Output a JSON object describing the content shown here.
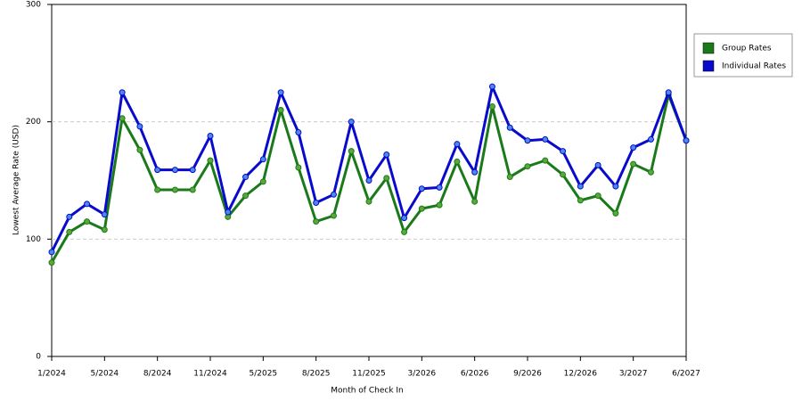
{
  "chart_data": {
    "type": "line",
    "x_label": "Month of Check In",
    "y_label": "Lowest Average Rate (USD)",
    "categories": [
      "1/2024",
      null,
      null,
      "5/2024",
      null,
      null,
      "8/2024",
      null,
      null,
      "11/2024",
      null,
      null,
      "5/2025",
      null,
      null,
      "8/2025",
      null,
      null,
      "11/2025",
      null,
      null,
      "3/2026",
      null,
      null,
      "6/2026",
      null,
      null,
      "9/2026",
      null,
      null,
      "12/2026",
      null,
      null,
      "3/2027",
      null,
      null,
      "6/2027"
    ],
    "series": [
      {
        "name": "Group Rates",
        "color": "#1a7a1a",
        "marker": "#5aa83a",
        "values": [
          80,
          106,
          115,
          108,
          203,
          176,
          142,
          142,
          142,
          167,
          119,
          137,
          149,
          210,
          161,
          115,
          120,
          175,
          132,
          152,
          106,
          126,
          129,
          166,
          132,
          213,
          153,
          162,
          167,
          155,
          133,
          137,
          122,
          164,
          157,
          223,
          184
        ]
      },
      {
        "name": "Individual Rates",
        "color": "#0a0acc",
        "marker": "#4a8ae8",
        "values": [
          89,
          119,
          130,
          121,
          225,
          196,
          159,
          159,
          159,
          188,
          123,
          153,
          168,
          225,
          191,
          131,
          138,
          200,
          150,
          172,
          118,
          143,
          144,
          181,
          157,
          230,
          195,
          184,
          185,
          175,
          145,
          163,
          145,
          178,
          185,
          225,
          184
        ]
      }
    ],
    "ylim": [
      0,
      300
    ],
    "yticks": [
      0,
      100,
      200,
      300
    ],
    "grid": true
  }
}
